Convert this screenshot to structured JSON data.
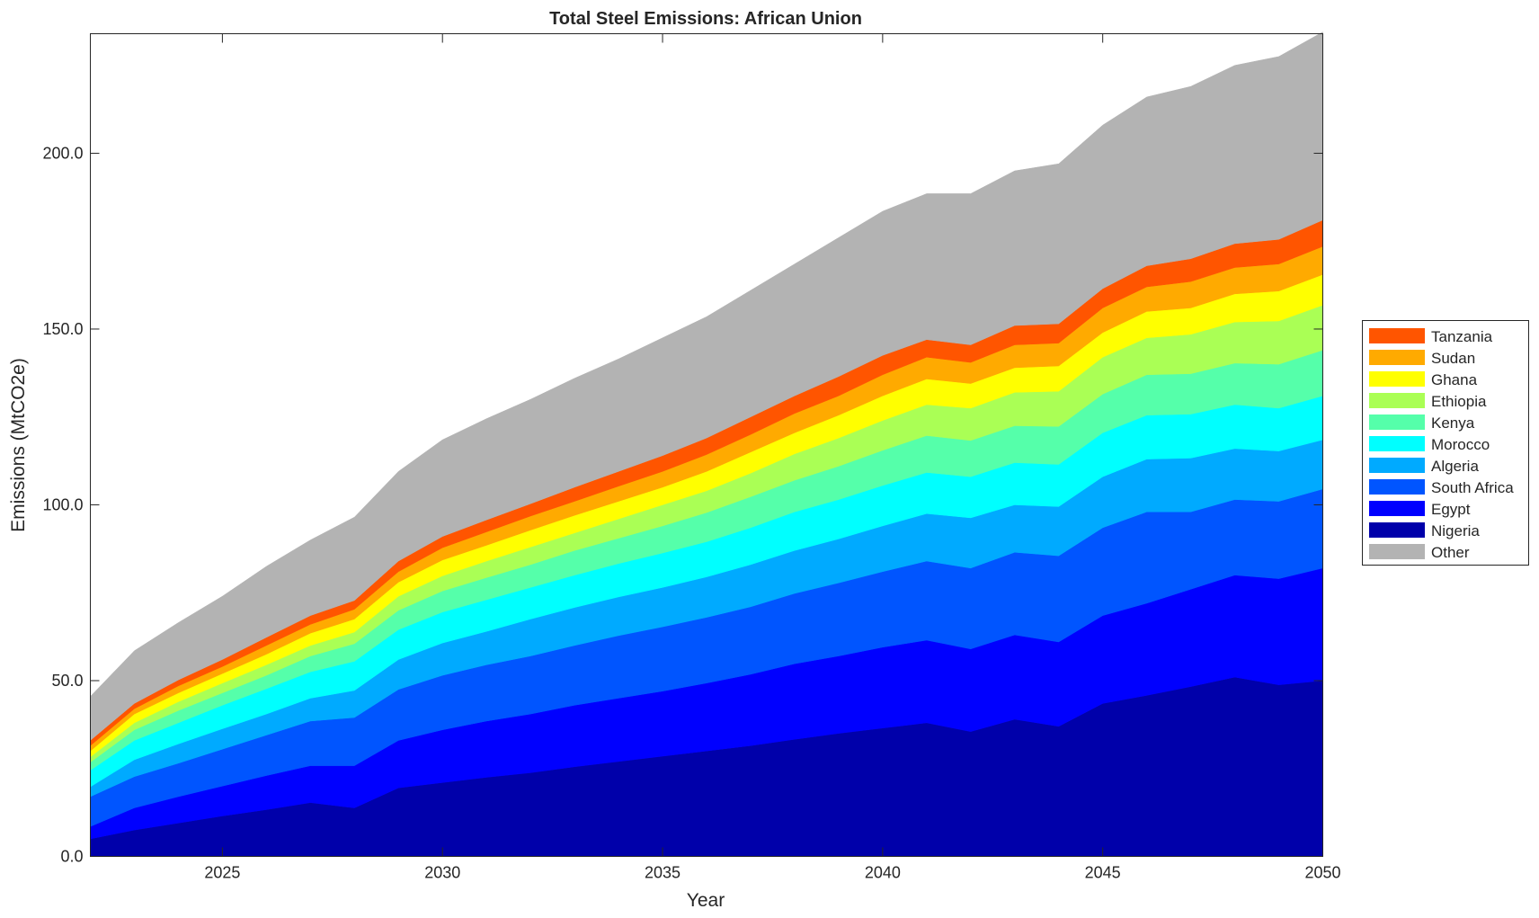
{
  "chart_data": {
    "type": "area",
    "stacked": true,
    "title": "Total Steel Emissions: African Union",
    "xlabel": "Year",
    "ylabel": "Emissions (MtCO2e)",
    "xlim": [
      2022,
      2050
    ],
    "ylim": [
      0,
      234
    ],
    "grid": false,
    "legend_position": "right",
    "xticks": [
      2025,
      2030,
      2035,
      2040,
      2045,
      2050
    ],
    "xtick_labels": [
      "2025",
      "2030",
      "2035",
      "2040",
      "2045",
      "2050"
    ],
    "yticks": [
      0,
      50,
      100,
      150,
      200
    ],
    "ytick_labels": [
      "0.0",
      "50.0",
      "100.0",
      "150.0",
      "200.0"
    ],
    "x": [
      2022,
      2023,
      2024,
      2025,
      2026,
      2027,
      2028,
      2029,
      2030,
      2031,
      2032,
      2033,
      2034,
      2035,
      2036,
      2037,
      2038,
      2039,
      2040,
      2041,
      2042,
      2043,
      2044,
      2045,
      2046,
      2047,
      2048,
      2049,
      2050
    ],
    "series": [
      {
        "name": "Nigeria",
        "color": "#0000AA",
        "values": [
          5,
          7.5,
          9.5,
          11.5,
          13.3,
          15.3,
          13.8,
          19.5,
          21,
          22.5,
          23.8,
          25.5,
          27,
          28.5,
          30,
          31.5,
          33.3,
          35,
          36.5,
          38,
          35.5,
          39,
          37,
          43.5,
          45.8,
          48.3,
          51,
          48.8,
          50
        ]
      },
      {
        "name": "Egypt",
        "color": "#0000FF",
        "values": [
          3.5,
          6.3,
          7.5,
          8.5,
          9.7,
          10.5,
          12,
          13.5,
          15,
          16,
          16.7,
          17.5,
          18,
          18.5,
          19.3,
          20.3,
          21.5,
          22,
          23,
          23.5,
          23.5,
          24,
          24,
          25,
          26.2,
          27.7,
          29,
          30.2,
          32
        ]
      },
      {
        "name": "South Africa",
        "color": "#0055FF",
        "values": [
          8.5,
          8.9,
          9.5,
          10.5,
          11.5,
          12.7,
          13.7,
          14.5,
          15.5,
          16,
          16.5,
          17,
          17.8,
          18.3,
          18.7,
          19.2,
          20,
          20.8,
          21.5,
          22.5,
          23,
          23.5,
          24.5,
          25,
          26,
          22,
          21.5,
          22,
          22.5
        ]
      },
      {
        "name": "Algeria",
        "color": "#00AAFF",
        "values": [
          2.8,
          4.8,
          5.5,
          5.8,
          6,
          6.5,
          7.7,
          8.5,
          9.2,
          9.5,
          10.5,
          10.8,
          11,
          11.2,
          11.5,
          12,
          12.2,
          12.5,
          13,
          13.5,
          14.3,
          13.5,
          14,
          14.5,
          15,
          15.3,
          14.5,
          14.3,
          14
        ]
      },
      {
        "name": "Morocco",
        "color": "#00FFFF",
        "values": [
          4.7,
          5.5,
          6,
          6.7,
          7.2,
          7.5,
          8.3,
          8.5,
          8.8,
          9,
          9,
          9.2,
          9.5,
          9.8,
          10,
          10.5,
          11,
          11.2,
          11.5,
          11.7,
          11.7,
          12,
          12,
          12.5,
          12.5,
          12.5,
          12.5,
          12.2,
          12.5
        ]
      },
      {
        "name": "Kenya",
        "color": "#55FFAA",
        "values": [
          2.3,
          3,
          3.5,
          3.5,
          3.8,
          4.5,
          5,
          5.5,
          6,
          6.3,
          6.5,
          7,
          7.2,
          7.7,
          8.3,
          8.8,
          9,
          9.5,
          10,
          10.5,
          10.3,
          10.5,
          10.8,
          11,
          11.5,
          11.5,
          11.8,
          12.5,
          13
        ]
      },
      {
        "name": "Ethiopia",
        "color": "#AAFF55",
        "values": [
          1.5,
          2,
          2.5,
          2.8,
          3,
          3,
          3.3,
          4,
          4.3,
          4.7,
          5,
          5,
          5.5,
          6,
          6.2,
          6.7,
          7.5,
          8,
          8.5,
          8.8,
          9.2,
          9.5,
          10,
          10.5,
          10.5,
          11.2,
          11.7,
          12.3,
          12.8
        ]
      },
      {
        "name": "Ghana",
        "color": "#FFFF00",
        "values": [
          1.7,
          2.5,
          2.5,
          2.7,
          3,
          3.5,
          3.7,
          4,
          4.5,
          4.5,
          4.8,
          5,
          5,
          5,
          5.5,
          6,
          6,
          6.5,
          7,
          7.3,
          7,
          7,
          7.2,
          7,
          7.5,
          7.5,
          8,
          8.5,
          8.7
        ]
      },
      {
        "name": "Sudan",
        "color": "#FFAA00",
        "values": [
          1.5,
          1.5,
          2,
          2,
          2.5,
          2.5,
          2.8,
          3,
          3.5,
          3.8,
          4,
          4,
          4.3,
          4.5,
          4.8,
          5,
          5.5,
          5.5,
          6,
          6.2,
          6,
          6.5,
          6.5,
          7,
          7,
          7.5,
          7.5,
          7.7,
          8
        ]
      },
      {
        "name": "Tanzania",
        "color": "#FF5500",
        "values": [
          1.5,
          1.5,
          1.7,
          2,
          2.3,
          2.5,
          2.5,
          3,
          3.2,
          3.4,
          3.5,
          4,
          4.2,
          4.5,
          4.7,
          5,
          5,
          5.5,
          5.5,
          5,
          5,
          5.5,
          5.5,
          5.5,
          6,
          6.5,
          6.8,
          7,
          7.5
        ]
      },
      {
        "name": "Other",
        "color": "#B3B3B3",
        "values": [
          12.5,
          15,
          16.3,
          18,
          20.2,
          21.5,
          23.7,
          25.5,
          27.5,
          28.8,
          29.7,
          31,
          32,
          33.5,
          34.5,
          36,
          37.5,
          39.5,
          41,
          41.5,
          43,
          44,
          45.5,
          46.5,
          48,
          49,
          50.7,
          52,
          53.5
        ]
      }
    ],
    "legend_order": [
      "Tanzania",
      "Sudan",
      "Ghana",
      "Ethiopia",
      "Kenya",
      "Morocco",
      "Algeria",
      "South Africa",
      "Egypt",
      "Nigeria",
      "Other"
    ]
  }
}
